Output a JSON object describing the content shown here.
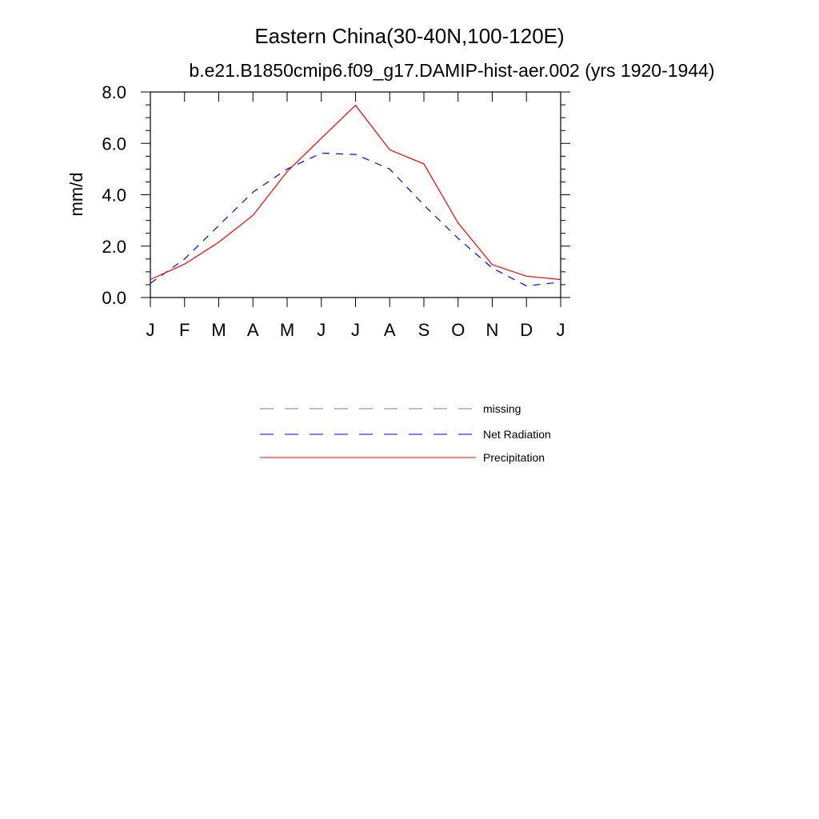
{
  "chart_data": {
    "type": "line",
    "title": "Eastern China(30-40N,100-120E)",
    "subtitle": "b.e21.B1850cmip6.f09_g17.DAMIP-hist-aer.002 (yrs 1920-1944)",
    "xlabel": "",
    "ylabel": "mm/d",
    "categories": [
      "J",
      "F",
      "M",
      "A",
      "M",
      "J",
      "J",
      "A",
      "S",
      "O",
      "N",
      "D",
      "J"
    ],
    "ylim": [
      0,
      8
    ],
    "yticks": [
      "0.0",
      "2.0",
      "4.0",
      "6.0",
      "8.0"
    ],
    "series": [
      {
        "name": "Net Radiation",
        "color": "#0000ff",
        "dash": "dashed",
        "values": [
          0.55,
          1.5,
          2.8,
          4.1,
          5.0,
          5.62,
          5.57,
          5.0,
          3.6,
          2.3,
          1.15,
          0.45,
          0.6
        ]
      },
      {
        "name": "Precipitation",
        "color": "#ff0000",
        "dash": "solid",
        "values": [
          0.7,
          1.3,
          2.15,
          3.2,
          4.9,
          6.2,
          7.48,
          5.75,
          5.2,
          2.9,
          1.28,
          0.83,
          0.7
        ]
      }
    ],
    "legend": [
      {
        "label": "missing",
        "color": "#808080",
        "dash": "dashed"
      },
      {
        "label": "Net Radiation",
        "color": "#0000ff",
        "dash": "dashed"
      },
      {
        "label": "Precipitation",
        "color": "#ff0000",
        "dash": "solid"
      }
    ],
    "grid": false,
    "legend_position": "bottom"
  }
}
